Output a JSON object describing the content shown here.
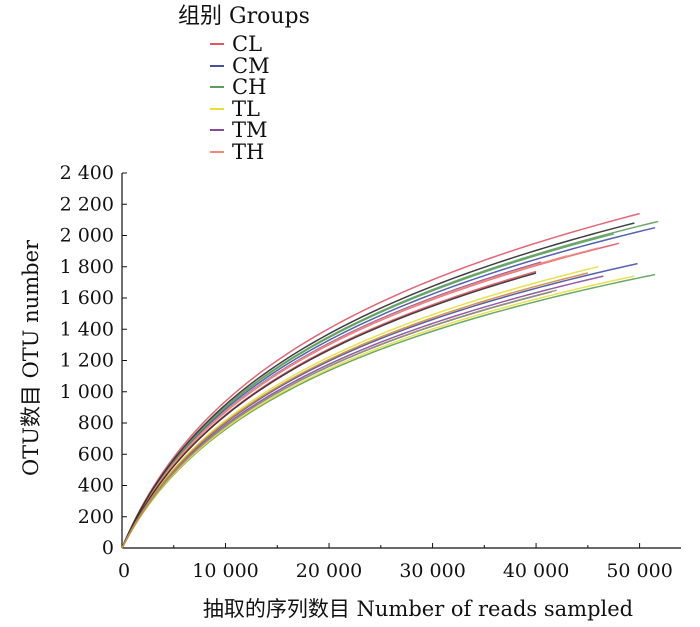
{
  "legend": {
    "title": "组别 Groups",
    "items": [
      {
        "label": "CL",
        "color": "#e15565"
      },
      {
        "label": "CM",
        "color": "#4450a8"
      },
      {
        "label": "CH",
        "color": "#5aa05a"
      },
      {
        "label": "TL",
        "color": "#e6df3c"
      },
      {
        "label": "TM",
        "color": "#8a4b9c"
      },
      {
        "label": "TH",
        "color": "#ef8a7c"
      }
    ]
  },
  "chart_data": {
    "type": "line",
    "title": "",
    "xlabel": "抽取的序列数目  Number of reads sampled",
    "ylabel": "OTU数目  OTU number",
    "xlim": [
      0,
      54000
    ],
    "ylim": [
      0,
      2400
    ],
    "x_ticks": [
      0,
      10000,
      20000,
      30000,
      40000,
      50000
    ],
    "x_tick_labels": [
      "0",
      "10 000",
      "20 000",
      "30 000",
      "40 000",
      "50 000"
    ],
    "y_ticks": [
      0,
      200,
      400,
      600,
      800,
      1000,
      1200,
      1400,
      1600,
      1800,
      2000,
      2200,
      2400
    ],
    "y_tick_labels": [
      "0",
      "200",
      "400",
      "600",
      "800",
      "1 000",
      "1 200",
      "1 400",
      "1 600",
      "1 800",
      "2 000",
      "2 200",
      "2 400"
    ],
    "grid": false,
    "legend_position": "top",
    "series": [
      {
        "name": "CL",
        "color": "#e15565",
        "x": [
          0,
          50000
        ],
        "y": [
          0,
          2140
        ]
      },
      {
        "name": "CL",
        "color": "#e15565",
        "x": [
          0,
          48000
        ],
        "y": [
          0,
          1950
        ]
      },
      {
        "name": "CL",
        "color": "#e15565",
        "x": [
          0,
          40000
        ],
        "y": [
          0,
          1770
        ]
      },
      {
        "name": "CM",
        "color": "#4450a8",
        "x": [
          0,
          51500
        ],
        "y": [
          0,
          2050
        ]
      },
      {
        "name": "CM",
        "color": "#4450a8",
        "x": [
          0,
          49800
        ],
        "y": [
          0,
          1820
        ]
      },
      {
        "name": "CM",
        "color": "#4450a8",
        "x": [
          0,
          41500
        ],
        "y": [
          0,
          1640
        ]
      },
      {
        "name": "CH",
        "color": "#5aa05a",
        "x": [
          0,
          51800
        ],
        "y": [
          0,
          2090
        ]
      },
      {
        "name": "CH",
        "color": "#5aa05a",
        "x": [
          0,
          47500
        ],
        "y": [
          0,
          2010
        ]
      },
      {
        "name": "CH",
        "color": "#5aa05a",
        "x": [
          0,
          51500
        ],
        "y": [
          0,
          1750
        ]
      },
      {
        "name": "TL",
        "color": "#e6df3c",
        "x": [
          0,
          46000
        ],
        "y": [
          0,
          1800
        ]
      },
      {
        "name": "TL",
        "color": "#e6df3c",
        "x": [
          0,
          49500
        ],
        "y": [
          0,
          1740
        ]
      },
      {
        "name": "TM",
        "color": "#8a4b9c",
        "x": [
          0,
          40500
        ],
        "y": [
          0,
          1830
        ]
      },
      {
        "name": "TM",
        "color": "#8a4b9c",
        "x": [
          0,
          46500
        ],
        "y": [
          0,
          1740
        ]
      },
      {
        "name": "TH",
        "color": "#ef8a7c",
        "x": [
          0,
          46000
        ],
        "y": [
          0,
          1920
        ]
      },
      {
        "name": "TH",
        "color": "#ef8a7c",
        "x": [
          0,
          43000
        ],
        "y": [
          0,
          1870
        ]
      },
      {
        "name": "",
        "color": "#2b2b2b",
        "x": [
          0,
          49500
        ],
        "y": [
          0,
          2080
        ]
      },
      {
        "name": "",
        "color": "#2b2b2b",
        "x": [
          0,
          40000
        ],
        "y": [
          0,
          1760
        ]
      },
      {
        "name": "",
        "color": "#9a9a6a",
        "x": [
          0,
          42000
        ],
        "y": [
          0,
          1650
        ]
      },
      {
        "name": "",
        "color": "#d08a3a",
        "x": [
          0,
          45000
        ],
        "y": [
          0,
          1760
        ]
      }
    ]
  }
}
